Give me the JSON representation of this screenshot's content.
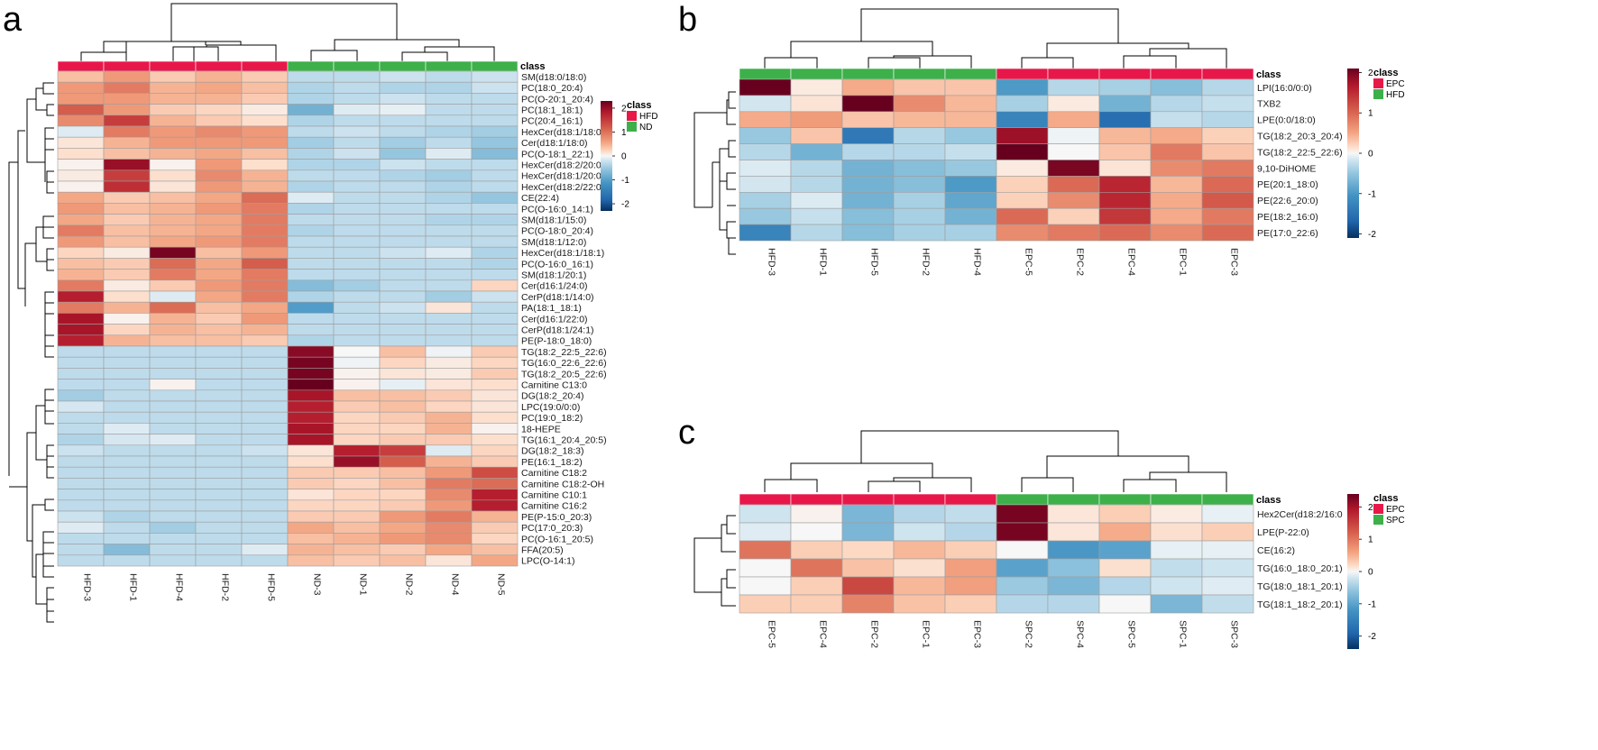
{
  "colors": {
    "red_class": "#e8174a",
    "green_class": "#3db04a",
    "scale": [
      "#053061",
      "#2166ac",
      "#4393c3",
      "#92c5de",
      "#d1e5f0",
      "#f7f7f7",
      "#fddbc7",
      "#f4a582",
      "#d6604d",
      "#b2182b",
      "#67001f"
    ],
    "dendrogram": "#000000",
    "cell_border": "#9e9e9e"
  },
  "chart_data": [
    {
      "panel": "a",
      "type": "heatmap",
      "class_title": "class",
      "legend": [
        {
          "label": "HFD",
          "color": "#e8174a"
        },
        {
          "label": "ND",
          "color": "#3db04a"
        }
      ],
      "colorbar": {
        "min": -2.3,
        "max": 2.3,
        "ticks": [
          2,
          1,
          0,
          -1,
          -2
        ]
      },
      "columns": [
        "HFD-3",
        "HFD-1",
        "HFD-4",
        "HFD-2",
        "HFD-5",
        "ND-3",
        "ND-1",
        "ND-2",
        "ND-4",
        "ND-5"
      ],
      "column_classes": [
        "HFD",
        "HFD",
        "HFD",
        "HFD",
        "HFD",
        "ND",
        "ND",
        "ND",
        "ND",
        "ND"
      ],
      "rows": [
        "SM(d18:0/18:0)",
        "PC(18:0_20:4)",
        "PC(O-20:1_20:4)",
        "PC(18:1_18:1)",
        "PC(20:4_16:1)",
        "HexCer(d18:1/18:0)",
        "Cer(d18:1/18:0)",
        "PC(O-18:1_22:1)",
        "HexCer(d18:2/20:0)",
        "HexCer(d18:1/20:0)",
        "HexCer(d18:2/22:0)",
        "CE(22:4)",
        "PC(O-16:0_14:1)",
        "SM(d18:1/15:0)",
        "PC(O-18:0_20:4)",
        "SM(d18:1/12:0)",
        "HexCer(d18:1/18:1)",
        "PC(O-16:0_16:1)",
        "SM(d18:1/20:1)",
        "Cer(d16:1/24:0)",
        "CerP(d18:1/14:0)",
        "PA(18:1_18:1)",
        "Cer(d16:1/22:0)",
        "CerP(d18:1/24:1)",
        "PE(P-18:0_18:0)",
        "TG(18:2_22:5_22:6)",
        "TG(16:0_22:6_22:6)",
        "TG(18:2_20:5_22:6)",
        "Carnitine C13:0",
        "DG(18:2_20:4)",
        "LPC(19:0/0:0)",
        "PC(19:0_18:2)",
        "18-HEPE",
        "TG(16:1_20:4_20:5)",
        "DG(18:2_18:3)",
        "PE(16:1_18:2)",
        "Carnitine C18:2",
        "Carnitine C18:2-OH",
        "Carnitine C10:1",
        "Carnitine C16:2",
        "PE(P-15:0_20:3)",
        "PC(17:0_20:3)",
        "PC(O-16:1_20:5)",
        "FFA(20:5)",
        "LPC(O-14:1)"
      ],
      "values": [
        [
          0.7,
          1.0,
          0.6,
          0.8,
          0.6,
          -0.6,
          -0.6,
          -0.5,
          -0.6,
          -0.5
        ],
        [
          1.0,
          1.2,
          0.8,
          0.9,
          0.7,
          -0.7,
          -0.6,
          -0.7,
          -0.7,
          -0.5
        ],
        [
          1.0,
          1.0,
          0.8,
          0.8,
          0.6,
          -0.7,
          -0.6,
          -0.5,
          -0.6,
          -0.6
        ],
        [
          1.4,
          1.0,
          0.6,
          0.5,
          0.2,
          -1.1,
          -0.3,
          -0.2,
          -0.6,
          -0.6
        ],
        [
          1.1,
          1.6,
          0.8,
          0.6,
          0.4,
          -0.7,
          -0.6,
          -0.6,
          -0.6,
          -0.6
        ],
        [
          -0.3,
          1.2,
          1.0,
          1.1,
          1.0,
          -0.6,
          -0.5,
          -0.6,
          -0.7,
          -0.8
        ],
        [
          0.3,
          0.8,
          1.0,
          1.0,
          1.0,
          -0.8,
          -0.6,
          -0.8,
          -0.6,
          -0.9
        ],
        [
          0.4,
          0.7,
          0.8,
          0.9,
          0.7,
          -0.7,
          -0.5,
          -0.9,
          -0.3,
          -1.0
        ],
        [
          0.1,
          2.0,
          0.1,
          1.0,
          0.4,
          -0.7,
          -0.7,
          -0.5,
          -0.6,
          -0.6
        ],
        [
          0.2,
          1.6,
          0.4,
          1.1,
          0.8,
          -0.6,
          -0.6,
          -0.7,
          -0.8,
          -0.6
        ],
        [
          0.1,
          1.7,
          0.3,
          1.0,
          0.8,
          -0.7,
          -0.6,
          -0.6,
          -0.7,
          -0.6
        ],
        [
          0.9,
          0.6,
          0.7,
          0.9,
          1.3,
          -0.3,
          -0.6,
          -0.6,
          -0.7,
          -0.9
        ],
        [
          1.0,
          0.7,
          0.8,
          1.0,
          1.2,
          -0.7,
          -0.6,
          -0.6,
          -0.6,
          -0.6
        ],
        [
          0.9,
          0.6,
          0.8,
          0.9,
          1.2,
          -0.6,
          -0.6,
          -0.6,
          -0.7,
          -0.7
        ],
        [
          1.2,
          0.7,
          0.8,
          0.9,
          1.2,
          -0.7,
          -0.6,
          -0.6,
          -0.6,
          -0.6
        ],
        [
          1.0,
          0.7,
          0.9,
          1.0,
          1.2,
          -0.6,
          -0.6,
          -0.6,
          -0.6,
          -0.6
        ],
        [
          0.5,
          0.2,
          2.2,
          0.7,
          1.0,
          -0.6,
          -0.6,
          -0.5,
          -0.3,
          -0.7
        ],
        [
          0.7,
          0.6,
          1.3,
          0.9,
          1.4,
          -0.6,
          -0.6,
          -0.6,
          -0.6,
          -0.7
        ],
        [
          0.8,
          0.6,
          1.2,
          0.9,
          1.2,
          -0.6,
          -0.6,
          -0.6,
          -0.6,
          -0.6
        ],
        [
          1.2,
          0.2,
          0.6,
          1.0,
          1.2,
          -1.0,
          -0.8,
          -0.6,
          -0.6,
          0.5
        ],
        [
          1.8,
          0.4,
          -0.3,
          0.9,
          1.2,
          -0.7,
          -0.6,
          -0.6,
          -0.8,
          -0.5
        ],
        [
          1.2,
          0.8,
          1.3,
          0.7,
          0.9,
          -1.3,
          -0.6,
          -0.5,
          0.3,
          -0.6
        ],
        [
          1.9,
          0.1,
          0.8,
          0.6,
          1.0,
          -0.6,
          -0.6,
          -0.6,
          -0.6,
          -0.6
        ],
        [
          1.9,
          0.5,
          0.8,
          0.7,
          0.8,
          -0.6,
          -0.6,
          -0.6,
          -0.6,
          -0.6
        ],
        [
          1.8,
          0.8,
          0.7,
          0.7,
          0.6,
          -0.7,
          -0.6,
          -0.6,
          -0.6,
          -0.6
        ],
        [
          -0.6,
          -0.6,
          -0.6,
          -0.6,
          -0.6,
          2.1,
          0.0,
          0.7,
          -0.1,
          0.6
        ],
        [
          -0.6,
          -0.6,
          -0.6,
          -0.6,
          -0.6,
          2.2,
          -0.1,
          0.5,
          0.2,
          0.5
        ],
        [
          -0.6,
          -0.6,
          -0.6,
          -0.6,
          -0.6,
          2.2,
          0.1,
          0.3,
          0.2,
          0.6
        ],
        [
          -0.6,
          -0.6,
          0.1,
          -0.6,
          -0.6,
          2.3,
          0.1,
          -0.2,
          0.3,
          0.4
        ],
        [
          -0.8,
          -0.6,
          -0.6,
          -0.6,
          -0.6,
          1.9,
          0.7,
          0.7,
          0.6,
          0.3
        ],
        [
          -0.4,
          -0.6,
          -0.6,
          -0.6,
          -0.6,
          1.8,
          0.6,
          0.7,
          0.5,
          0.3
        ],
        [
          -0.6,
          -0.6,
          -0.6,
          -0.6,
          -0.6,
          1.8,
          0.5,
          0.6,
          0.8,
          0.4
        ],
        [
          -0.6,
          -0.3,
          -0.6,
          -0.6,
          -0.6,
          1.9,
          0.5,
          0.5,
          0.8,
          0.1
        ],
        [
          -0.7,
          -0.4,
          -0.3,
          -0.6,
          -0.6,
          1.9,
          0.5,
          0.6,
          0.6,
          0.4
        ],
        [
          -0.5,
          -0.6,
          -0.6,
          -0.6,
          -0.5,
          0.3,
          1.8,
          1.6,
          -0.3,
          0.5
        ],
        [
          -0.6,
          -0.6,
          -0.6,
          -0.6,
          -0.6,
          0.4,
          2.0,
          1.4,
          0.8,
          0.6
        ],
        [
          -0.6,
          -0.6,
          -0.6,
          -0.6,
          -0.6,
          0.6,
          0.6,
          0.7,
          1.0,
          1.5
        ],
        [
          -0.6,
          -0.6,
          -0.6,
          -0.6,
          -0.6,
          0.6,
          0.5,
          0.7,
          1.2,
          1.3
        ],
        [
          -0.6,
          -0.6,
          -0.6,
          -0.6,
          -0.6,
          0.3,
          0.5,
          0.5,
          1.1,
          1.8
        ],
        [
          -0.6,
          -0.6,
          -0.6,
          -0.6,
          -0.6,
          0.5,
          0.5,
          0.6,
          1.0,
          1.8
        ],
        [
          -0.5,
          -0.7,
          -0.6,
          -0.6,
          -0.6,
          0.6,
          0.6,
          1.0,
          1.2,
          0.8
        ],
        [
          -0.3,
          -0.6,
          -0.8,
          -0.6,
          -0.6,
          0.9,
          0.7,
          0.9,
          1.1,
          0.6
        ],
        [
          -0.6,
          -0.6,
          -0.6,
          -0.6,
          -0.6,
          0.7,
          0.8,
          1.0,
          1.1,
          0.5
        ],
        [
          -0.6,
          -1.0,
          -0.6,
          -0.6,
          -0.3,
          0.8,
          0.7,
          0.6,
          0.9,
          0.7
        ],
        [
          -0.6,
          -0.6,
          -0.6,
          -0.6,
          -0.6,
          0.7,
          0.6,
          0.7,
          0.3,
          0.9
        ]
      ]
    },
    {
      "panel": "b",
      "type": "heatmap",
      "class_title": "class",
      "legend": [
        {
          "label": "EPC",
          "color": "#e8174a"
        },
        {
          "label": "HFD",
          "color": "#3db04a"
        }
      ],
      "colorbar": {
        "min": -2.1,
        "max": 2.1,
        "ticks": [
          2,
          1,
          0,
          -1,
          -2
        ]
      },
      "columns": [
        "HFD-3",
        "HFD-1",
        "HFD-5",
        "HFD-2",
        "HFD-4",
        "EPC-5",
        "EPC-2",
        "EPC-4",
        "EPC-1",
        "EPC-3"
      ],
      "column_classes": [
        "HFD",
        "HFD",
        "HFD",
        "HFD",
        "HFD",
        "EPC",
        "EPC",
        "EPC",
        "EPC",
        "EPC"
      ],
      "rows": [
        "LPI(16:0/0:0)",
        "TXB2",
        "LPE(0:0/18:0)",
        "TG(18:2_20:3_20:4)",
        "TG(18:2_22:5_22:6)",
        "9,10-DiHOME",
        "PE(20:1_18:0)",
        "PE(22:6_20:0)",
        "PE(18:2_16:0)",
        "PE(17:0_22:6)"
      ],
      "values": [
        [
          2.1,
          0.2,
          0.8,
          0.6,
          0.6,
          -1.2,
          -0.6,
          -0.7,
          -0.9,
          -0.6
        ],
        [
          -0.4,
          0.3,
          2.1,
          1.0,
          0.7,
          -0.7,
          0.2,
          -1.0,
          -0.6,
          -0.5
        ],
        [
          0.8,
          0.9,
          0.6,
          0.7,
          0.7,
          -1.4,
          0.8,
          -1.6,
          -0.5,
          -0.6
        ],
        [
          -0.8,
          0.6,
          -1.5,
          -0.6,
          -0.8,
          1.8,
          -0.1,
          0.7,
          0.8,
          0.5
        ],
        [
          -0.6,
          -1.0,
          -0.6,
          -0.6,
          -0.5,
          2.1,
          0.0,
          0.6,
          1.1,
          0.6
        ],
        [
          -0.3,
          -0.6,
          -1.0,
          -0.9,
          -0.8,
          0.2,
          2.0,
          0.3,
          1.0,
          1.1
        ],
        [
          -0.4,
          -0.6,
          -1.0,
          -0.9,
          -1.2,
          0.5,
          1.2,
          1.6,
          0.7,
          1.2
        ],
        [
          -0.7,
          -0.3,
          -1.0,
          -0.7,
          -1.1,
          0.5,
          1.0,
          1.6,
          0.8,
          1.3
        ],
        [
          -0.8,
          -0.5,
          -0.9,
          -0.7,
          -1.0,
          1.2,
          0.5,
          1.5,
          0.8,
          1.1
        ],
        [
          -1.4,
          -0.6,
          -0.9,
          -0.7,
          -0.7,
          1.0,
          1.1,
          1.2,
          1.0,
          1.2
        ]
      ]
    },
    {
      "panel": "c",
      "type": "heatmap",
      "class_title": "class",
      "legend": [
        {
          "label": "EPC",
          "color": "#e8174a"
        },
        {
          "label": "SPC",
          "color": "#3db04a"
        }
      ],
      "colorbar": {
        "min": -2.4,
        "max": 2.4,
        "ticks": [
          2,
          1,
          0,
          -1,
          -2
        ]
      },
      "columns": [
        "EPC-5",
        "EPC-4",
        "EPC-2",
        "EPC-1",
        "EPC-3",
        "SPC-2",
        "SPC-4",
        "SPC-5",
        "SPC-1",
        "SPC-3"
      ],
      "column_classes": [
        "EPC",
        "EPC",
        "EPC",
        "EPC",
        "EPC",
        "SPC",
        "SPC",
        "SPC",
        "SPC",
        "SPC"
      ],
      "rows": [
        "Hex2Cer(d18:2/16:0",
        "LPE(P-22:0)",
        "CE(16:2)",
        "TG(16:0_18:0_20:1)",
        "TG(18:0_18:1_20:1)",
        "TG(18:1_18:2_20:1)"
      ],
      "values": [
        [
          -0.5,
          0.1,
          -1.1,
          -0.7,
          -0.6,
          2.3,
          0.3,
          0.6,
          0.2,
          -0.2
        ],
        [
          -0.3,
          0.0,
          -1.1,
          -0.5,
          -0.7,
          2.3,
          0.3,
          0.9,
          0.4,
          0.6
        ],
        [
          1.3,
          0.6,
          0.5,
          0.8,
          0.6,
          0.0,
          -1.4,
          -1.3,
          -0.2,
          -0.2
        ],
        [
          0.0,
          1.3,
          0.7,
          0.4,
          1.0,
          -1.3,
          -1.0,
          0.4,
          -0.6,
          -0.5
        ],
        [
          0.0,
          0.6,
          1.6,
          0.8,
          1.0,
          -0.9,
          -1.1,
          -0.7,
          -0.5,
          -0.3
        ],
        [
          0.6,
          0.6,
          1.2,
          0.7,
          0.6,
          -0.7,
          -0.7,
          0.0,
          -1.1,
          -0.6
        ]
      ]
    }
  ]
}
